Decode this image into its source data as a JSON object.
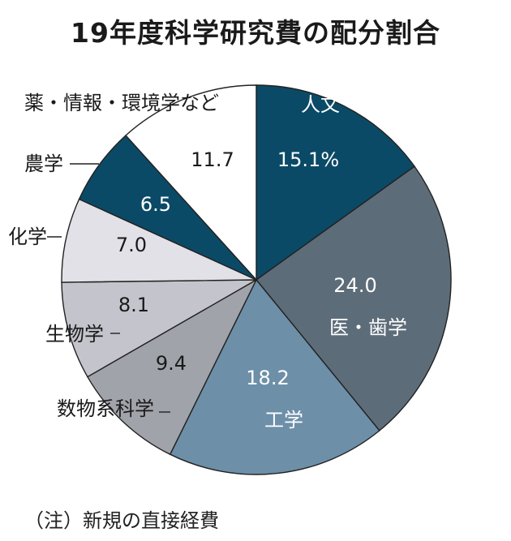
{
  "chart_data": {
    "type": "pie",
    "title": "19年度科学研究費の配分割合",
    "note": "（注）新規の直接経費",
    "slices": [
      {
        "name": "人文・社会科学",
        "value": 15.1,
        "value_label": "15.1%",
        "color": "#0b4a66",
        "text_color": "#ffffff"
      },
      {
        "name": "医・歯学",
        "value": 24.0,
        "value_label": "24.0",
        "color": "#5d6c79",
        "text_color": "#ffffff"
      },
      {
        "name": "工学",
        "value": 18.2,
        "value_label": "18.2",
        "color": "#6d8fa8",
        "text_color": "#ffffff"
      },
      {
        "name": "数物系科学",
        "value": 9.4,
        "value_label": "9.4",
        "color": "#a1a3ab",
        "text_color": "#1a1a1a"
      },
      {
        "name": "生物学",
        "value": 8.1,
        "value_label": "8.1",
        "color": "#c4c4cc",
        "text_color": "#1a1a1a"
      },
      {
        "name": "化学",
        "value": 7.0,
        "value_label": "7.0",
        "color": "#e1e1e7",
        "text_color": "#1a1a1a"
      },
      {
        "name": "農学",
        "value": 6.5,
        "value_label": "6.5",
        "color": "#0b4a66",
        "text_color": "#ffffff"
      },
      {
        "name": "薬・情報・環境学など",
        "value": 11.7,
        "value_label": "11.7",
        "color": "#ffffff",
        "text_color": "#1a1a1a"
      }
    ]
  }
}
